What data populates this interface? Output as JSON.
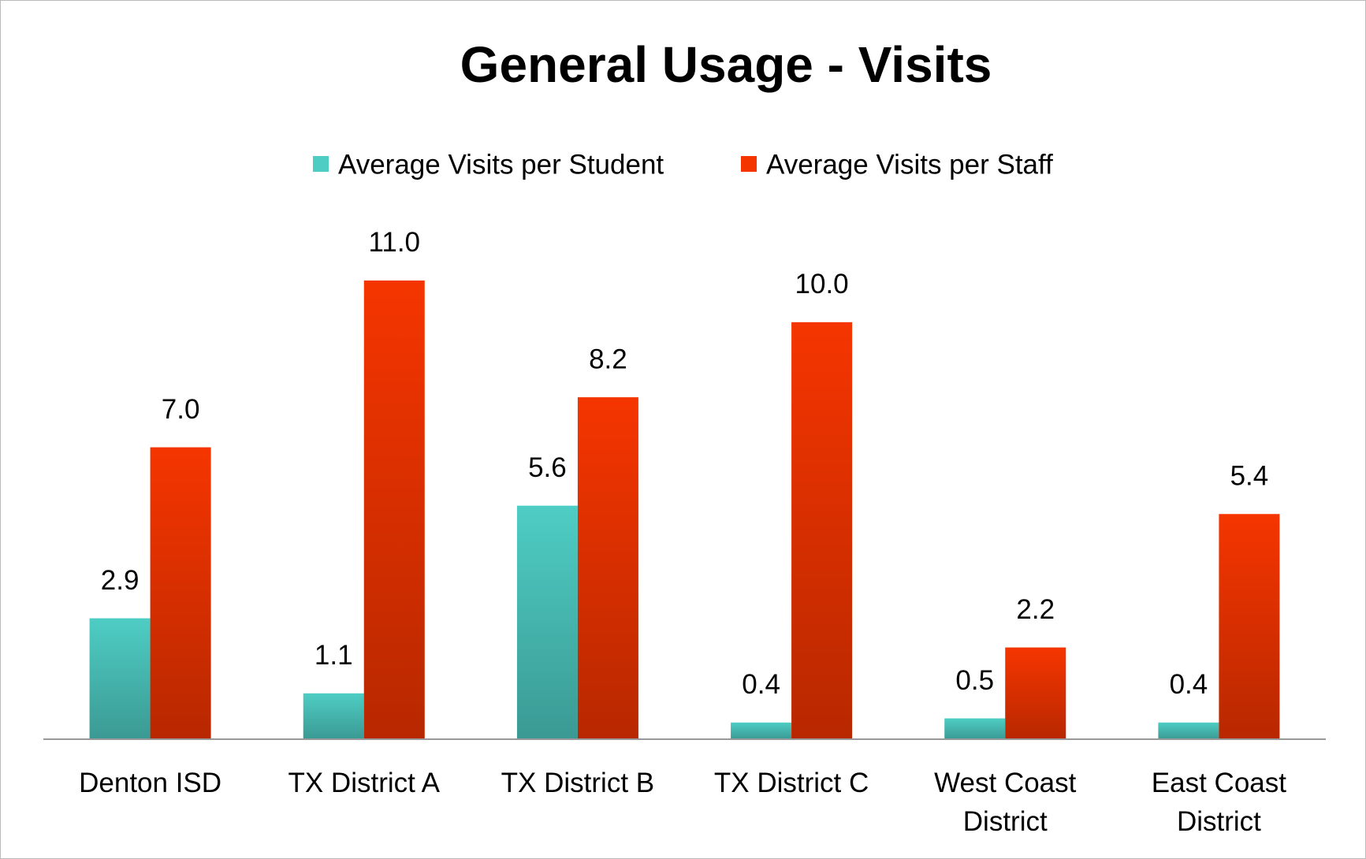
{
  "chart_data": {
    "type": "bar",
    "title": "General Usage - Visits",
    "categories": [
      "Denton ISD",
      "TX District A",
      "TX District B",
      "TX District C",
      "West Coast District",
      "East Coast District"
    ],
    "series": [
      {
        "name": "Average Visits per Student",
        "color": "#4ecdc4",
        "values": [
          2.9,
          1.1,
          5.6,
          0.4,
          0.5,
          0.4
        ],
        "value_labels": [
          "2.9",
          "1.1",
          "5.6",
          "0.4",
          "0.5",
          "0.4"
        ]
      },
      {
        "name": "Average Visits per Staff",
        "color": "#f53500",
        "values": [
          7,
          11,
          8.2,
          10,
          2.2,
          5.4
        ],
        "value_labels": [
          "7.0",
          "11.0",
          "8.2",
          "10.0",
          "2.2",
          "5.4"
        ]
      }
    ],
    "ylim": [
      0,
      12
    ]
  }
}
